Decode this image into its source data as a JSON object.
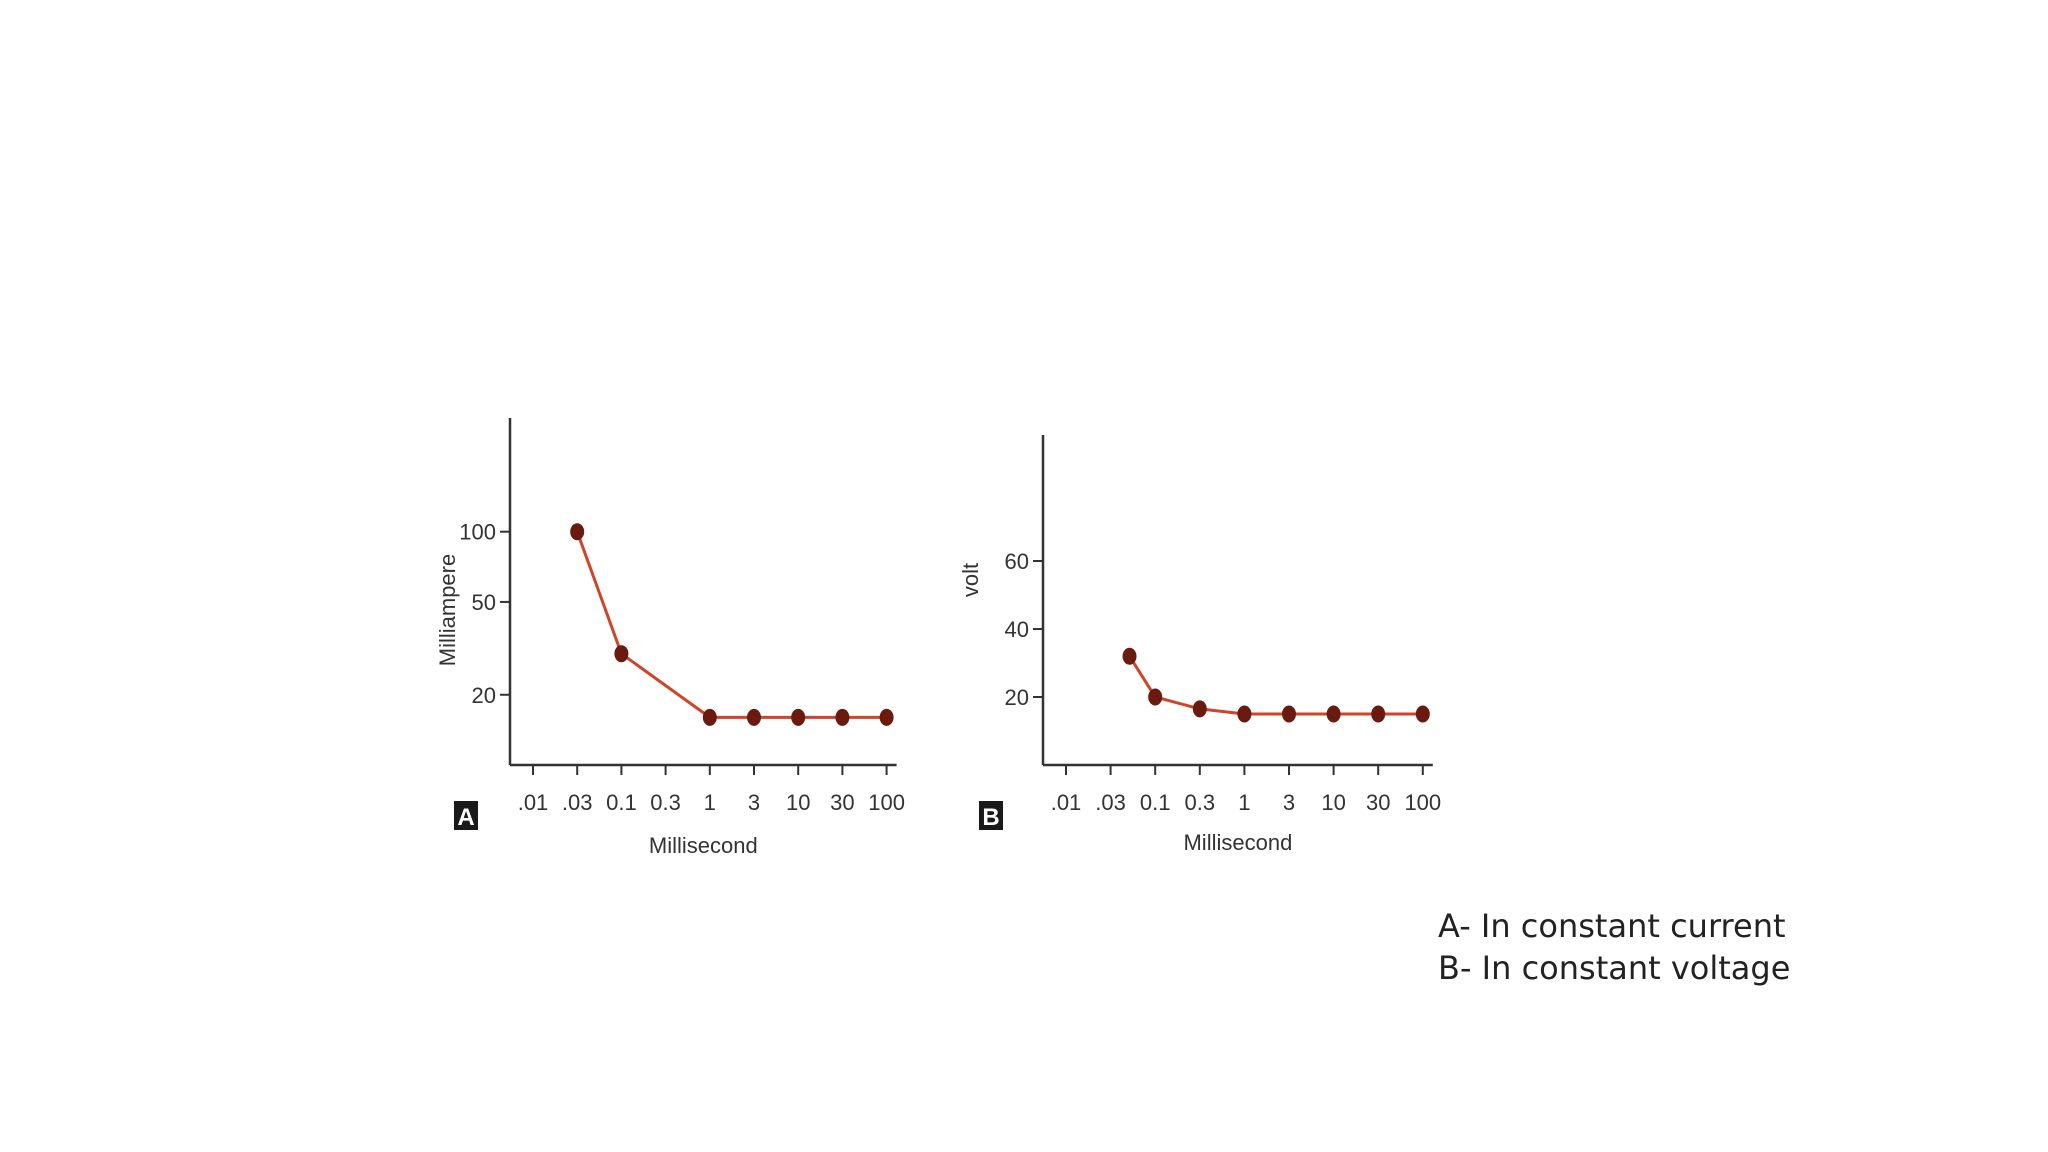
{
  "chart_data": [
    {
      "type": "line",
      "panel_label": "A",
      "xlabel": "Millisecond",
      "ylabel": "Milliampere",
      "x_categories": [
        ".01",
        ".03",
        "0.1",
        "0.3",
        "1",
        "3",
        "10",
        "30",
        "100"
      ],
      "y_ticks": [
        "20",
        "50",
        "100"
      ],
      "y_scale": "log",
      "x_scale": "log",
      "grid": false,
      "series": [
        {
          "x": [
            ".03",
            "0.1",
            "1",
            "3",
            "10",
            "30",
            "100"
          ],
          "y": [
            100,
            30,
            16,
            16,
            16,
            16,
            16
          ]
        }
      ],
      "line_color": "#d0442a",
      "marker_color": "#6b1a10"
    },
    {
      "type": "line",
      "panel_label": "B",
      "xlabel": "Millisecond",
      "ylabel": "volt",
      "x_categories": [
        ".01",
        ".03",
        "0.1",
        "0.3",
        "1",
        "3",
        "10",
        "30",
        "100"
      ],
      "y_ticks": [
        "20",
        "40",
        "60"
      ],
      "y_scale": "linear",
      "x_scale": "log",
      "grid": false,
      "series": [
        {
          "x": [
            0.05,
            "0.1",
            "0.3",
            "1",
            "3",
            "10",
            "30",
            "100"
          ],
          "y": [
            32,
            20,
            16.5,
            15,
            15,
            15,
            15,
            15
          ]
        }
      ],
      "line_color": "#d0442a",
      "marker_color": "#6b1a10"
    }
  ],
  "caption": {
    "line_a": "A- In constant current",
    "line_b": "B- In constant voltage"
  }
}
